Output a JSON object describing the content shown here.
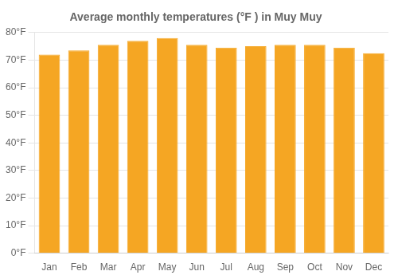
{
  "chart_data": {
    "type": "bar",
    "title": "Average monthly temperatures (°F ) in Muy Muy",
    "categories": [
      "Jan",
      "Feb",
      "Mar",
      "Apr",
      "May",
      "Jun",
      "Jul",
      "Aug",
      "Sep",
      "Oct",
      "Nov",
      "Dec"
    ],
    "values": [
      72,
      73.5,
      75.5,
      77,
      78,
      75.5,
      74.5,
      75,
      75.5,
      75.5,
      74.5,
      72.5
    ],
    "color": "#F5A623",
    "ylim": [
      0,
      80
    ],
    "yticks": [
      {
        "value": 0,
        "label": "0°F"
      },
      {
        "value": 10,
        "label": "10°F"
      },
      {
        "value": 20,
        "label": "20°F"
      },
      {
        "value": 30,
        "label": "30°F"
      },
      {
        "value": 40,
        "label": "40°F"
      },
      {
        "value": 50,
        "label": "50°F"
      },
      {
        "value": 60,
        "label": "60°F"
      },
      {
        "value": 70,
        "label": "70°F"
      },
      {
        "value": 80,
        "label": "80°F"
      }
    ],
    "grid": true
  }
}
